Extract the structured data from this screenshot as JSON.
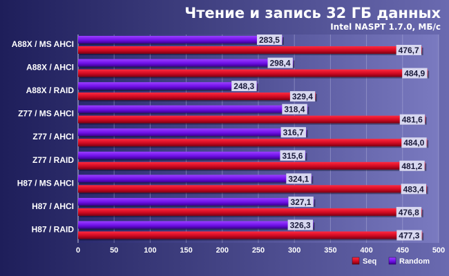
{
  "chart_data": {
    "type": "bar",
    "orientation": "horizontal",
    "title": "Чтение и запись 32 ГБ данных",
    "subtitle": "Intel NASPT 1.7.0, МБ/с",
    "categories": [
      "A88X / MS AHCI",
      "A88X / AHCI",
      "A88X / RAID",
      "Z77 / MS AHCI",
      "Z77 / AHCI",
      "Z77 / RAID",
      "H87 / MS AHCI",
      "H87 / AHCI",
      "H87 / RAID"
    ],
    "series": [
      {
        "name": "Random",
        "color": "#7a14f0",
        "values": [
          283.5,
          298.4,
          248.3,
          318.4,
          316.7,
          315.6,
          324.1,
          327.1,
          326.3
        ],
        "labels": [
          "283,5",
          "298,4",
          "248,3",
          "318,4",
          "316,7",
          "315,6",
          "324,1",
          "327,1",
          "326,3"
        ]
      },
      {
        "name": "Seq",
        "color": "#e0102a",
        "values": [
          476.7,
          484.9,
          329.4,
          481.6,
          484.0,
          481.2,
          483.4,
          476.8,
          477.3
        ],
        "labels": [
          "476,7",
          "484,9",
          "329,4",
          "481,6",
          "484,0",
          "481,2",
          "483,4",
          "476,8",
          "477,3"
        ]
      }
    ],
    "legend_order": [
      "Seq",
      "Random"
    ],
    "xlim": [
      0,
      500
    ],
    "xticks": [
      0,
      50,
      100,
      150,
      200,
      250,
      300,
      350,
      400,
      450,
      500
    ],
    "grid": true,
    "legend_position": "bottom-right"
  }
}
